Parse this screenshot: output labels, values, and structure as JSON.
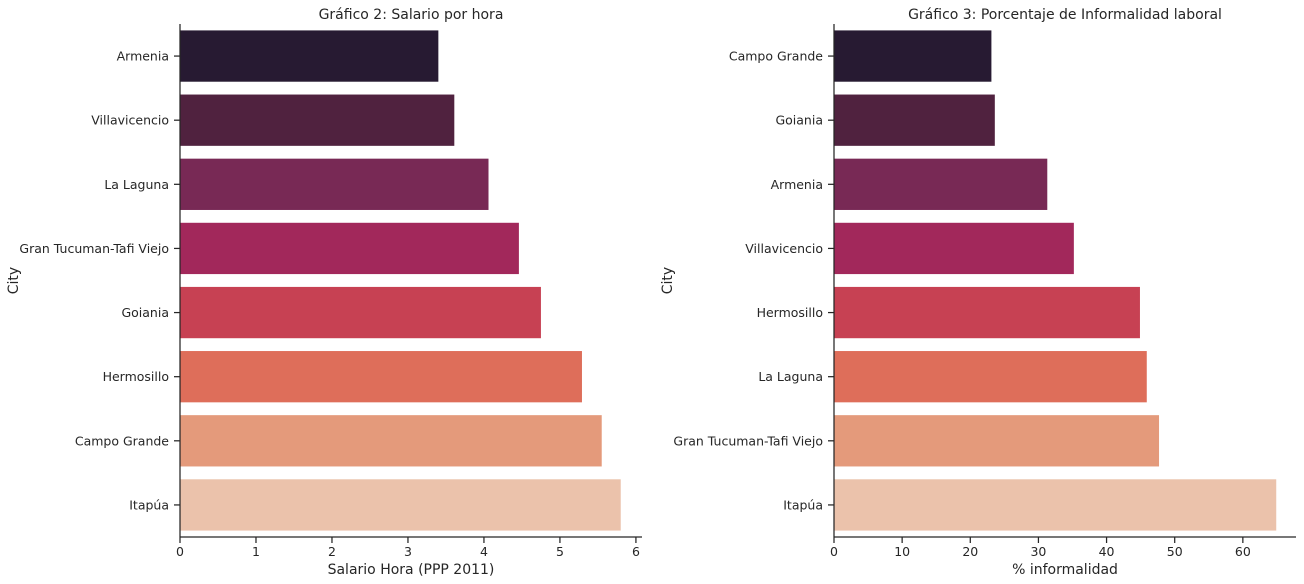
{
  "chart_data": [
    {
      "type": "bar",
      "orientation": "horizontal",
      "title": "Gráfico 2: Salario por hora",
      "xlabel": "Salario Hora (PPP 2011)",
      "ylabel": "City",
      "categories": [
        "Armenia",
        "Villavicencio",
        "La Laguna",
        "Gran Tucuman-Tafi Viejo",
        "Goiania",
        "Hermosillo",
        "Campo Grande",
        "Itapúa"
      ],
      "values": [
        3.4,
        3.61,
        4.06,
        4.46,
        4.75,
        5.29,
        5.55,
        5.8
      ],
      "xlim": [
        0,
        6.08
      ],
      "xticks": [
        "0",
        "1",
        "2",
        "3",
        "4",
        "5",
        "6"
      ],
      "grid": false
    },
    {
      "type": "bar",
      "orientation": "horizontal",
      "title": "Gráfico 3: Porcentaje de Informalidad laboral",
      "xlabel": "% informalidad",
      "ylabel": "City",
      "categories": [
        "Campo Grande",
        "Goiania",
        "Armenia",
        "Villavicencio",
        "Hermosillo",
        "La Laguna",
        "Gran Tucuman-Tafi Viejo",
        "Itapúa"
      ],
      "values": [
        23.1,
        23.6,
        31.3,
        35.2,
        44.9,
        45.9,
        47.7,
        64.9
      ],
      "xlim": [
        0,
        67.8
      ],
      "xticks": [
        "0",
        "10",
        "20",
        "30",
        "40",
        "50",
        "60"
      ],
      "grid": false
    }
  ],
  "palette": [
    "#271a32",
    "#50223f",
    "#782955",
    "#a2285b",
    "#c74153",
    "#de6e5a",
    "#e49a7b",
    "#ebc2ab"
  ]
}
